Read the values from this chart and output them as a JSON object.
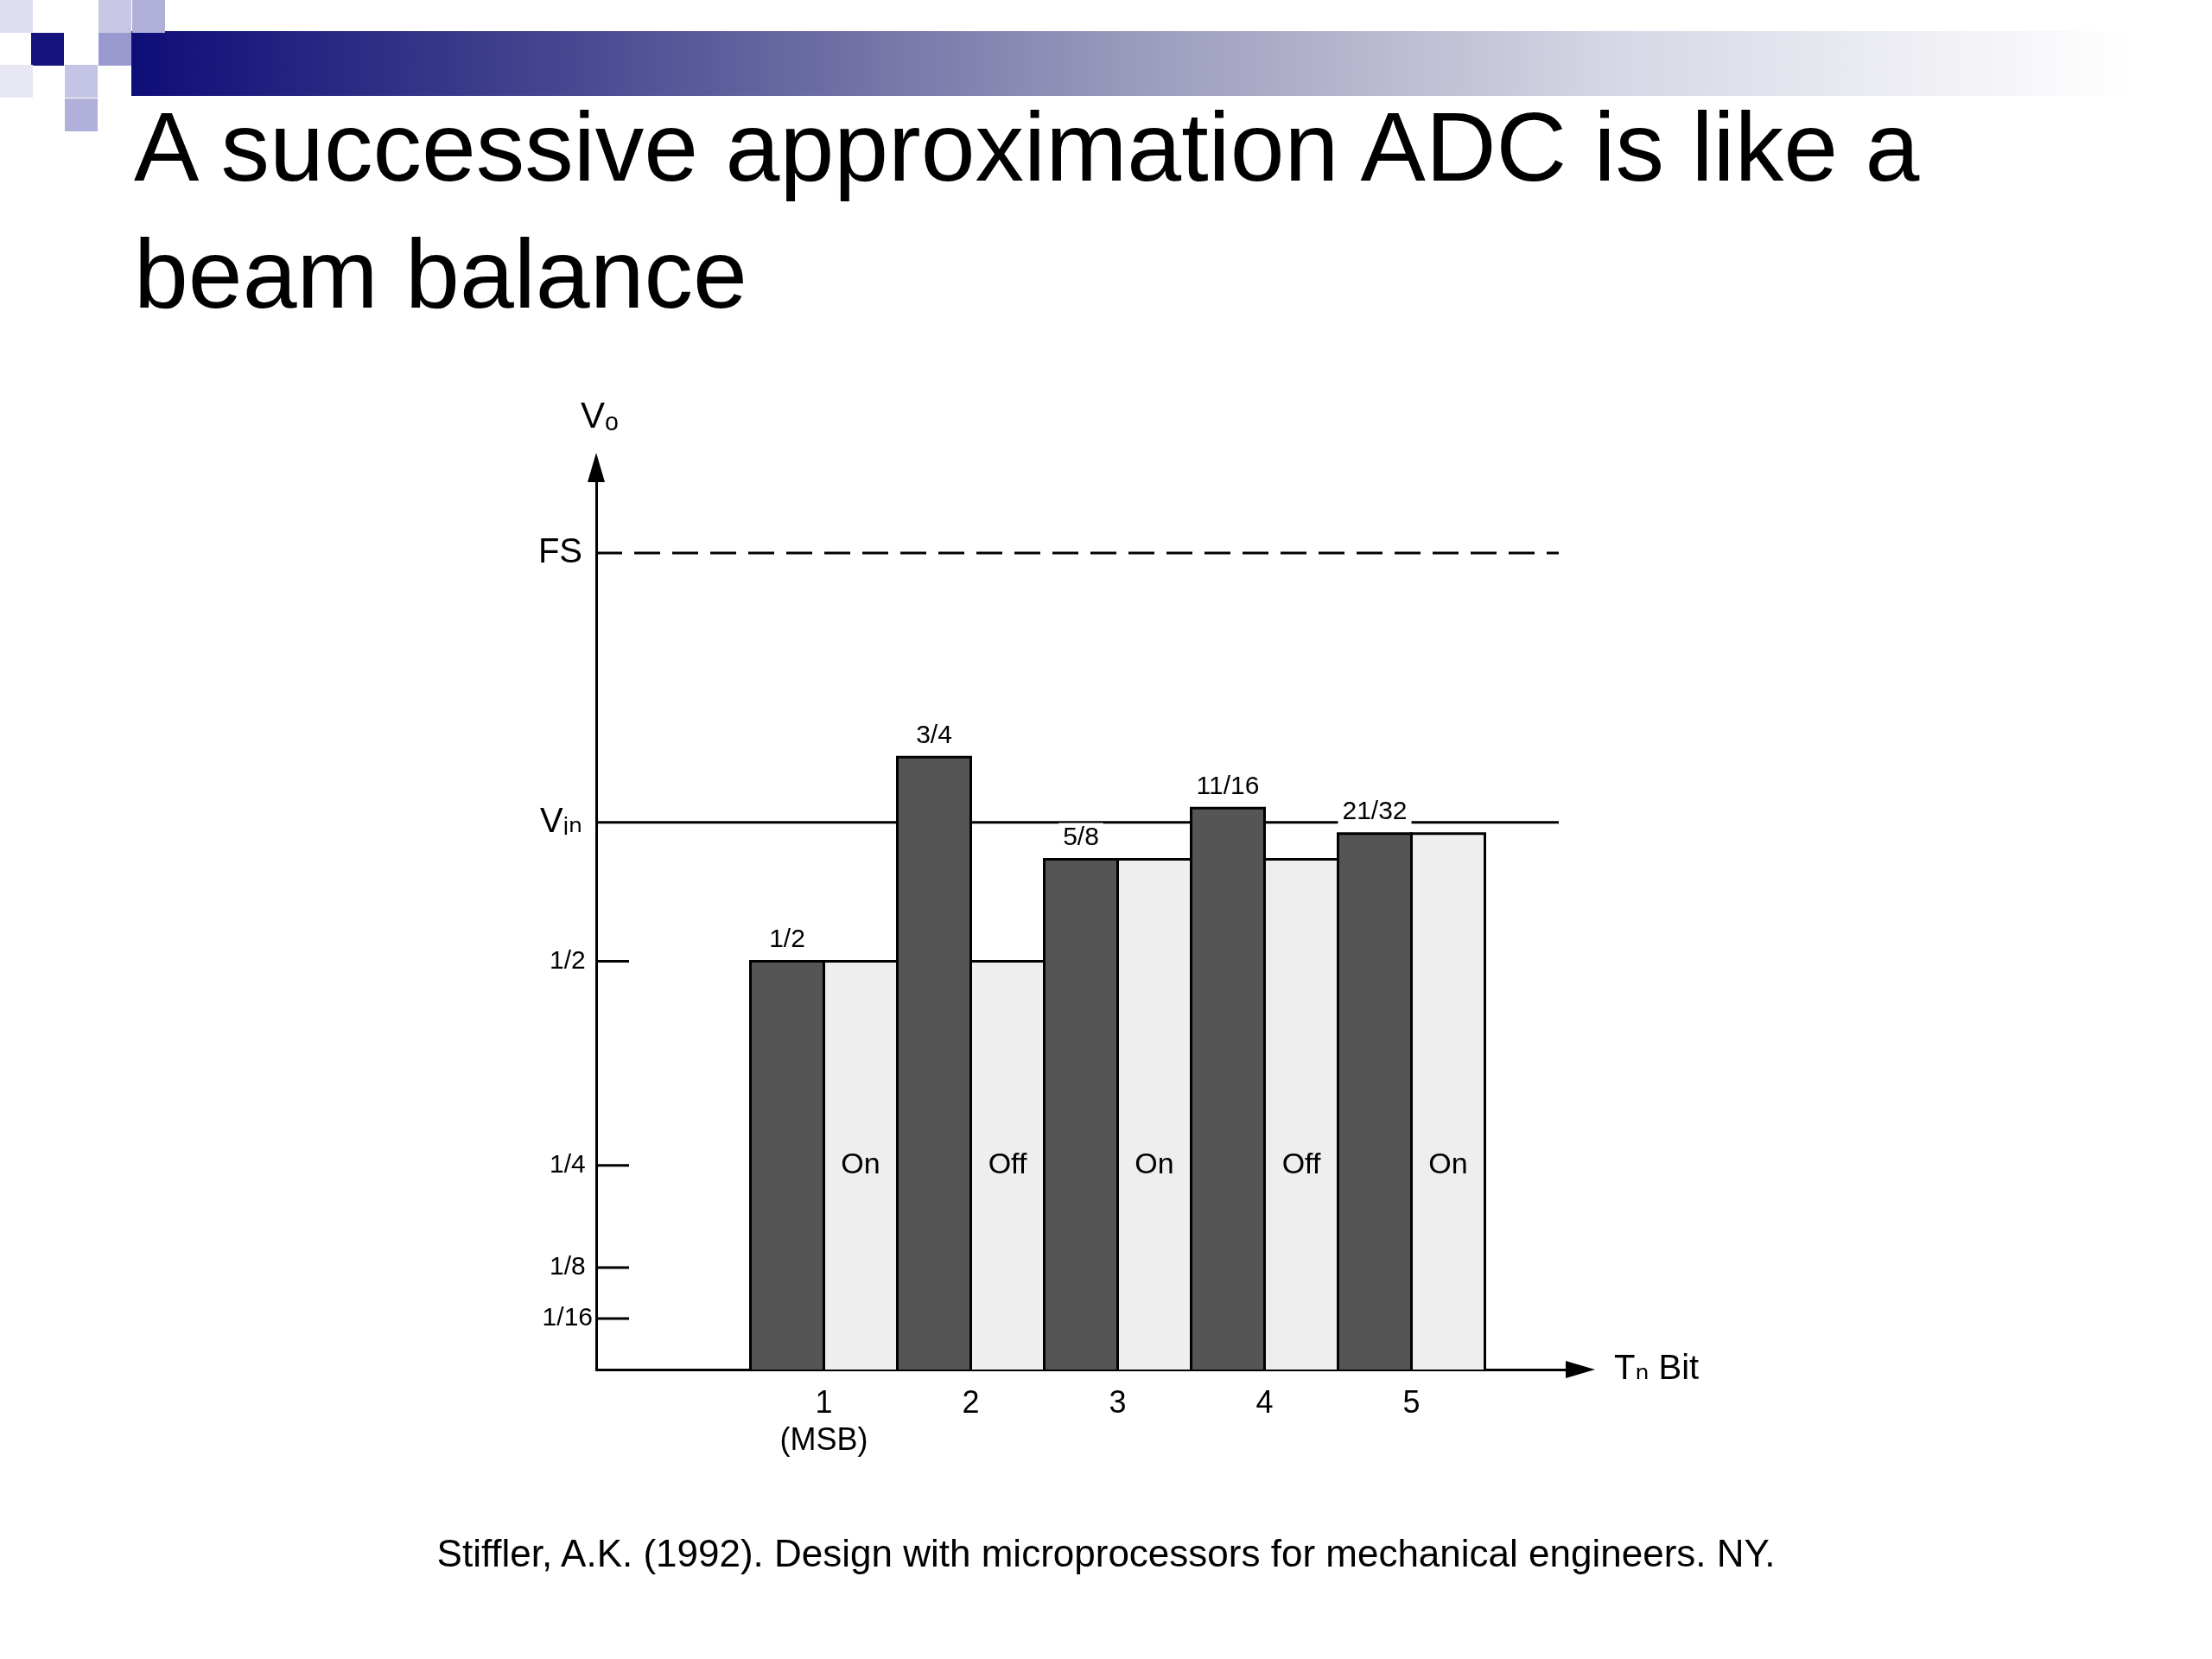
{
  "chart_data": {
    "type": "bar",
    "title": "A successive approximation ADC is like a beam balance",
    "xlabel": "Tₙ Bit",
    "ylabel": "Vₒ",
    "categories": [
      "1\n(MSB)",
      "2",
      "3",
      "4",
      "5"
    ],
    "series": [
      {
        "color": "#555555",
        "values": [
          0.5,
          0.75,
          0.625,
          0.6875,
          0.65625
        ],
        "value_labels": [
          "1/2",
          "3/4",
          "5/8",
          "11/16",
          "21/32"
        ]
      },
      {
        "color": "#eeeeee",
        "values": [
          0.5,
          0.5,
          0.625,
          0.625,
          0.65625
        ],
        "value_labels": [
          "On",
          "Off",
          "On",
          "Off",
          "On"
        ]
      }
    ],
    "ylim": [
      0,
      1
    ],
    "yticks": [
      {
        "value": 0.0625,
        "label": "1/16"
      },
      {
        "value": 0.125,
        "label": "1/8"
      },
      {
        "value": 0.25,
        "label": "1/4"
      },
      {
        "value": 0.5,
        "label": "1/2"
      }
    ],
    "ref_lines": [
      {
        "axis": "y",
        "value": 1,
        "label": "FS",
        "line_style": "dashed"
      },
      {
        "axis": "y",
        "value": 0.67,
        "label": "Vᵢₙ",
        "line_style": "solid"
      }
    ],
    "grid": false,
    "legend": false,
    "annotations": [
      "Stiffler, A.K. (1992). Design with microprocessors for mechanical engineers. NY."
    ]
  }
}
